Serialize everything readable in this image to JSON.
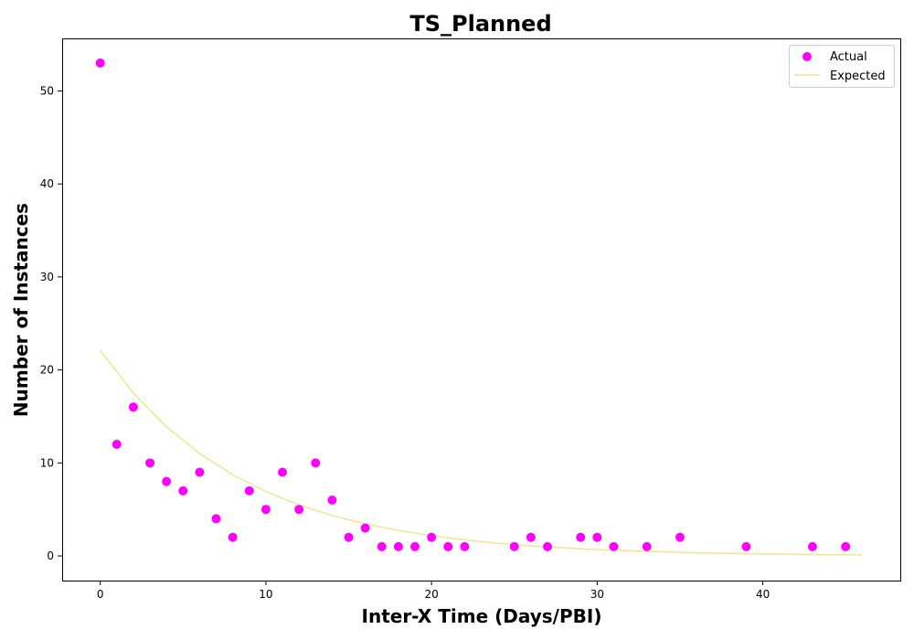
{
  "chart_data": {
    "type": "scatter",
    "title": "TS_Planned",
    "xlabel": "Inter-X Time (Days/PBI)",
    "ylabel": "Number of Instances",
    "xlim": [
      -2.3,
      48.3
    ],
    "ylim": [
      -2.65,
      55.65
    ],
    "xticks": [
      0,
      10,
      20,
      30,
      40
    ],
    "yticks": [
      0,
      10,
      20,
      30,
      40,
      50
    ],
    "grid": false,
    "legend_position": "top-right",
    "series": [
      {
        "name": "Actual",
        "kind": "scatter",
        "color": "#ff00ff",
        "x": [
          0,
          1,
          2,
          3,
          4,
          5,
          6,
          7,
          8,
          9,
          10,
          11,
          12,
          13,
          14,
          15,
          16,
          17,
          18,
          19,
          20,
          21,
          22,
          25,
          26,
          27,
          29,
          30,
          31,
          33,
          35,
          39,
          43,
          45
        ],
        "y": [
          53,
          12,
          16,
          10,
          8,
          7,
          9,
          4,
          2,
          7,
          5,
          9,
          5,
          10,
          6,
          2,
          3,
          1,
          1,
          1,
          2,
          1,
          1,
          1,
          2,
          1,
          2,
          2,
          1,
          1,
          2,
          1,
          1,
          1
        ]
      },
      {
        "name": "Expected",
        "kind": "line",
        "color": "#f0e68c",
        "x": [
          0,
          2,
          4,
          6,
          8,
          10,
          12,
          14,
          16,
          18,
          20,
          22,
          24,
          26,
          28,
          30,
          32,
          34,
          36,
          38,
          40,
          42,
          44,
          46
        ],
        "y": [
          22.1,
          17.52,
          13.89,
          11.01,
          8.73,
          6.92,
          5.49,
          4.35,
          3.45,
          2.74,
          2.17,
          1.72,
          1.36,
          1.08,
          0.86,
          0.68,
          0.54,
          0.43,
          0.34,
          0.27,
          0.21,
          0.17,
          0.13,
          0.11
        ]
      }
    ]
  }
}
